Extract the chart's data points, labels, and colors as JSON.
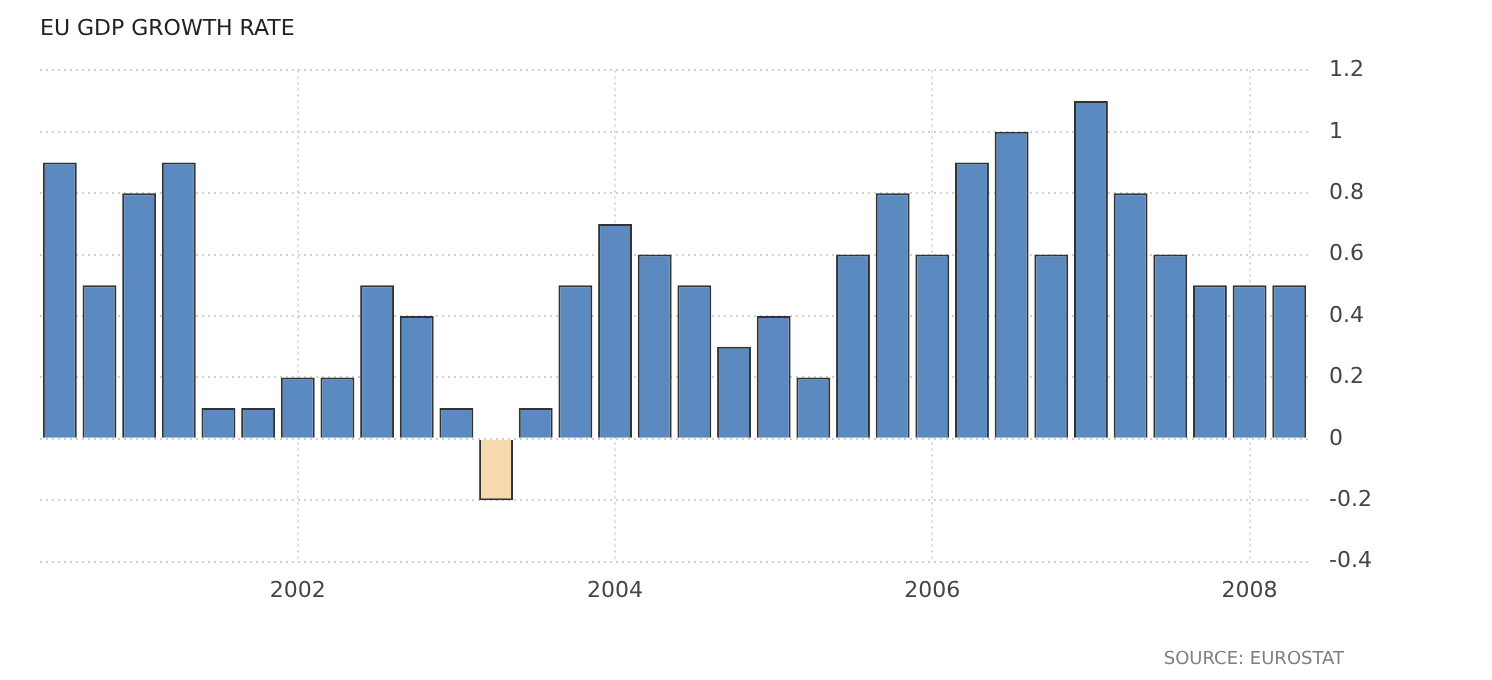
{
  "chart_data": {
    "type": "bar",
    "title": "EU GDP GROWTH RATE",
    "categories": [
      null,
      null,
      null,
      null,
      null,
      null,
      "2002",
      null,
      null,
      null,
      null,
      null,
      null,
      null,
      "2004",
      null,
      null,
      null,
      null,
      null,
      null,
      null,
      "2006",
      null,
      null,
      null,
      null,
      null,
      null,
      null,
      "2008",
      null
    ],
    "values": [
      0.9,
      0.5,
      0.8,
      0.9,
      0.1,
      0.1,
      0.2,
      0.2,
      0.5,
      0.4,
      0.1,
      -0.2,
      0.1,
      0.5,
      0.7,
      0.6,
      0.5,
      0.3,
      0.4,
      0.2,
      0.6,
      0.8,
      0.6,
      0.9,
      1.0,
      0.6,
      1.1,
      0.8,
      0.6,
      0.5,
      0.5,
      0.5
    ],
    "colors": [
      "#5a8ac0",
      "#5a8ac0",
      "#5a8ac0",
      "#5a8ac0",
      "#5a8ac0",
      "#5a8ac0",
      "#5a8ac0",
      "#5a8ac0",
      "#5a8ac0",
      "#5a8ac0",
      "#5a8ac0",
      "#f7d9b0",
      "#5a8ac0",
      "#5a8ac0",
      "#5a8ac0",
      "#5a8ac0",
      "#5a8ac0",
      "#5a8ac0",
      "#5a8ac0",
      "#5a8ac0",
      "#5a8ac0",
      "#5a8ac0",
      "#5a8ac0",
      "#5a8ac0",
      "#5a8ac0",
      "#5a8ac0",
      "#5a8ac0",
      "#5a8ac0",
      "#5a8ac0",
      "#5a8ac0",
      "#5a8ac0",
      "#5a8ac0"
    ],
    "ylim": [
      -0.4,
      1.2
    ],
    "yticks": [
      -0.4,
      -0.2,
      0,
      0.2,
      0.4,
      0.6,
      0.8,
      1,
      1.2
    ],
    "grid": true,
    "legend": false,
    "annotations": [
      "SOURCE: EUROSTAT"
    ]
  }
}
